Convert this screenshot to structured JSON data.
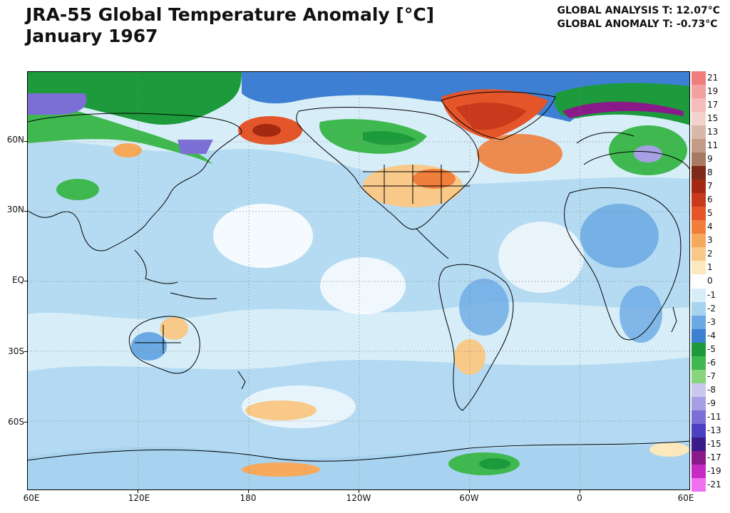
{
  "header": {
    "title_line1": "JRA-55 Global Temperature Anomaly [°C]",
    "title_line2": "January 1967",
    "analysis_label": "GLOBAL ANALYSIS T: 12.07°C",
    "anomaly_label": "GLOBAL ANOMALY T: -0.73°C"
  },
  "axes": {
    "lat_labels": [
      "60N",
      "30N",
      "EQ",
      "30S",
      "60S"
    ],
    "lon_labels": [
      "60E",
      "120E",
      "180",
      "120W",
      "60W",
      "0",
      "60E"
    ]
  },
  "legend": {
    "items": [
      {
        "label": "21",
        "color": "#f07d7d"
      },
      {
        "label": "19",
        "color": "#f3a0a0"
      },
      {
        "label": "17",
        "color": "#f6bbbb"
      },
      {
        "label": "15",
        "color": "#f3d2cd"
      },
      {
        "label": "13",
        "color": "#d9b7a9"
      },
      {
        "label": "11",
        "color": "#c39b87"
      },
      {
        "label": "9",
        "color": "#a87a64"
      },
      {
        "label": "8",
        "color": "#7d2a18"
      },
      {
        "label": "7",
        "color": "#a32a12"
      },
      {
        "label": "6",
        "color": "#c9391b"
      },
      {
        "label": "5",
        "color": "#e4552a"
      },
      {
        "label": "4",
        "color": "#f07f3c"
      },
      {
        "label": "3",
        "color": "#f6a85b"
      },
      {
        "label": "2",
        "color": "#f9c98a"
      },
      {
        "label": "1",
        "color": "#fbe8bd"
      },
      {
        "label": "0",
        "color": "#ffffff"
      },
      {
        "label": "-1",
        "color": "#d7eef8"
      },
      {
        "label": "-2",
        "color": "#a7d3f0"
      },
      {
        "label": "-3",
        "color": "#6aa9e3"
      },
      {
        "label": "-4",
        "color": "#3d7fd2"
      },
      {
        "label": "-5",
        "color": "#1d9a3b"
      },
      {
        "label": "-6",
        "color": "#3fb84f"
      },
      {
        "label": "-7",
        "color": "#86d47c"
      },
      {
        "label": "-8",
        "color": "#cbc7ef"
      },
      {
        "label": "-9",
        "color": "#a79fe4"
      },
      {
        "label": "-11",
        "color": "#7b6fd6"
      },
      {
        "label": "-13",
        "color": "#4b3fc2"
      },
      {
        "label": "-15",
        "color": "#3b1a8a"
      },
      {
        "label": "-17",
        "color": "#8a1a8a"
      },
      {
        "label": "-19",
        "color": "#c52ac5"
      },
      {
        "label": "-21",
        "color": "#f070f0"
      }
    ]
  }
}
